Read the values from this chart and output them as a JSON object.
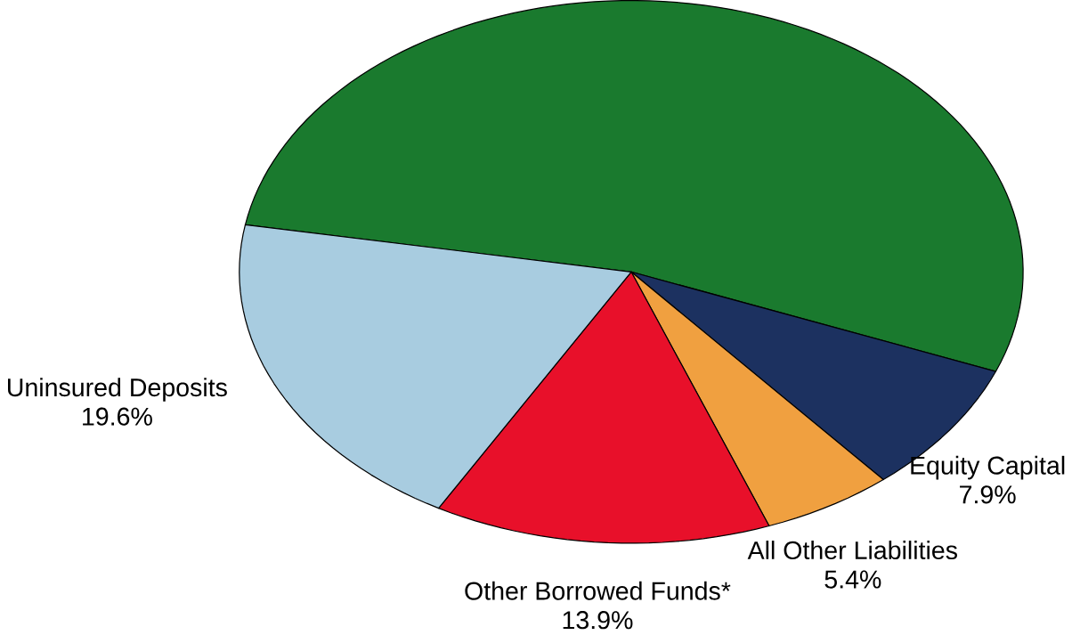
{
  "chart_data": {
    "type": "pie",
    "categories": [
      null,
      "Equity Capital",
      "All Other Liabilities",
      "Other Borrowed Funds*",
      "Uninsured Deposits"
    ],
    "values": [
      53.2,
      7.9,
      5.4,
      13.9,
      19.6
    ],
    "value_labels": [
      null,
      "7.9%",
      "5.4%",
      "13.9%",
      "19.6%"
    ],
    "colors": [
      "#1a7a2e",
      "#1c3160",
      "#f0a040",
      "#e8102a",
      "#a8cce0"
    ]
  }
}
